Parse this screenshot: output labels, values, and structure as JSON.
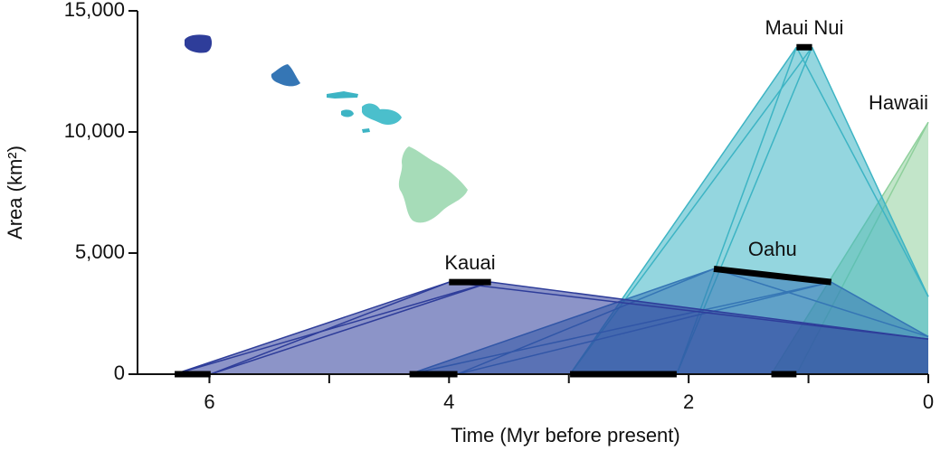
{
  "chart_data": {
    "type": "area",
    "xlabel": "Time (Myr before present)",
    "ylabel": "Area (km²)",
    "xlim": [
      6.6,
      0
    ],
    "ylim": [
      0,
      15000
    ],
    "xticks": [
      6,
      4,
      2,
      0
    ],
    "xminorticks": [
      5,
      3,
      1
    ],
    "yticks": [
      0,
      {
        "value": 5000,
        "label": "5,000"
      },
      {
        "value": 10000,
        "label": "10,000"
      },
      {
        "value": 15000,
        "label": "15,000"
      }
    ],
    "series": [
      {
        "name": "Kauai",
        "color": "#2e3d9a",
        "emergence": [
          6.29,
          5.99
        ],
        "peak_time": [
          4.0,
          3.65
        ],
        "peak_area": [
          3800,
          3800
        ],
        "present_area": 1450
      },
      {
        "name": "Oahu",
        "color": "#3576b5",
        "emergence": [
          4.33,
          3.93
        ],
        "peak_time": [
          1.79,
          0.81
        ],
        "peak_area": [
          4350,
          3800
        ],
        "present_area": 1550
      },
      {
        "name": "Maui Nui",
        "color": "#3db4c4",
        "emergence": [
          2.99,
          2.1
        ],
        "peak_time": [
          1.1,
          0.97
        ],
        "peak_area": [
          13500,
          13500
        ],
        "present_area": 3200
      },
      {
        "name": "Hawaii",
        "color": "#8fd09c",
        "emergence": [
          1.31,
          1.1
        ],
        "present_area": 10400
      }
    ]
  }
}
